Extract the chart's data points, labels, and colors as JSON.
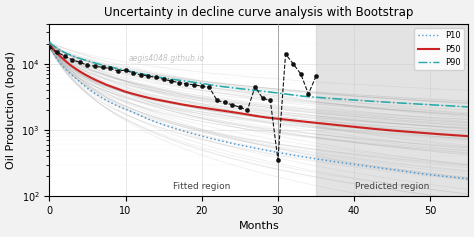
{
  "title": "Uncertainty in decline curve analysis with Bootstrap",
  "xlabel": "Months",
  "ylabel": "Oil Production (bopd)",
  "watermark": "aegis4048.github.io",
  "xlim": [
    0,
    55
  ],
  "ylim": [
    100,
    40000
  ],
  "fitted_region_end": 30,
  "predicted_region_start": 35,
  "fitted_label": "Fitted region",
  "predicted_label": "Predicted region",
  "background_color": "#f2f2f2",
  "plot_bg_color": "#ffffff",
  "predicted_bg_color": "#e0e0e0",
  "n_bootstrap": 80,
  "q_initial": 20000,
  "Di_base": 0.25,
  "b_base": 0.9,
  "p10_color": "#5599cc",
  "p50_color": "#cc2222",
  "p90_color": "#22aaaa",
  "bootstrap_color": "#999999",
  "data_color": "#111111",
  "t_data": [
    0,
    1,
    2,
    3,
    4,
    5,
    6,
    7,
    8,
    9,
    10,
    11,
    12,
    13,
    14,
    15,
    16,
    17,
    18,
    19,
    20,
    21,
    22,
    23,
    24,
    25,
    26,
    27,
    28,
    29,
    30,
    31,
    32,
    33,
    34,
    35
  ],
  "q_data": [
    18000,
    15000,
    13000,
    11500,
    10500,
    9500,
    9200,
    8800,
    8500,
    7800,
    8000,
    7200,
    6800,
    6500,
    6200,
    5800,
    5500,
    5200,
    5000,
    4800,
    4600,
    4400,
    2800,
    2600,
    2400,
    2200,
    2000,
    4500,
    3000,
    2800,
    350,
    14000,
    10000,
    7000,
    3500,
    6500
  ]
}
